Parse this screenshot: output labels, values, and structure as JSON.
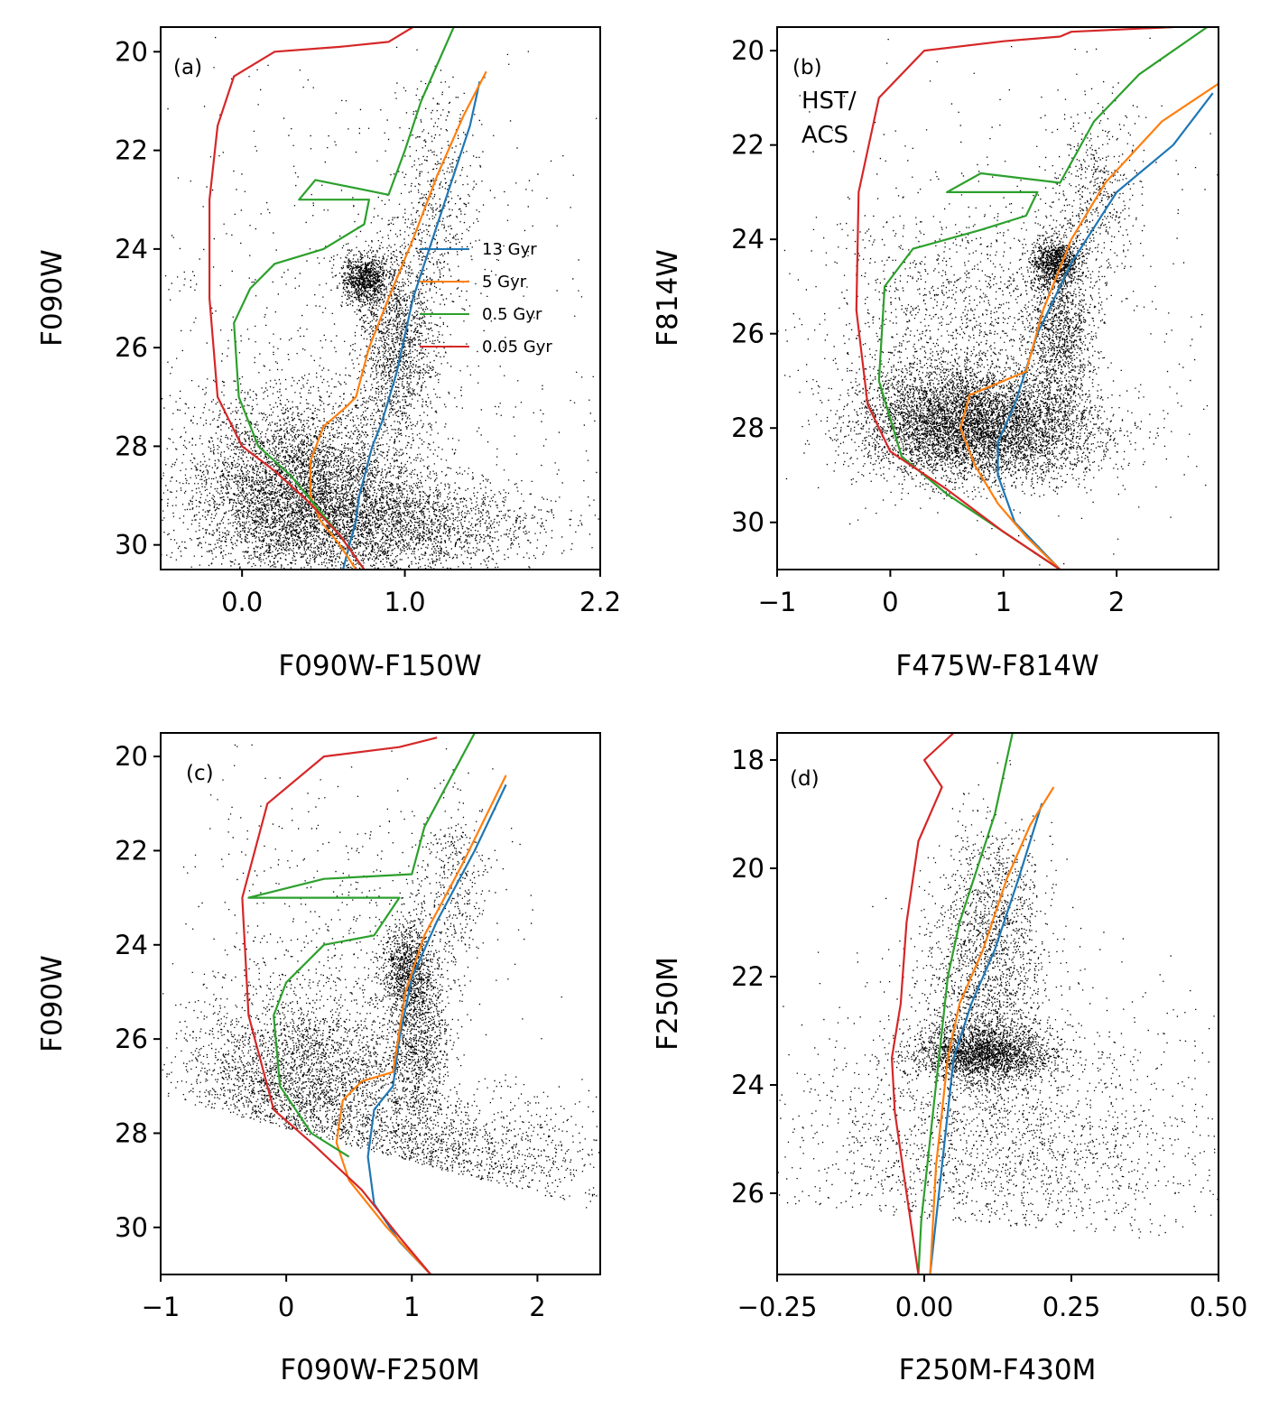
{
  "figure": {
    "description_note": "Four color-magnitude diagram panels with isochrones",
    "colors": {
      "13 Gyr": "#1f77b4",
      "5 Gyr": "#ff7f0e",
      "0.5 Gyr": "#2ca02c",
      "0.05 Gyr": "#d62728",
      "points": "#000000"
    }
  },
  "chart_data": [
    {
      "type": "scatter",
      "panel_label": "(a)",
      "xlabel": "F090W-F150W",
      "ylabel": "F090W",
      "xlim": [
        -0.5,
        2.2
      ],
      "ylim": [
        30.5,
        19.5
      ],
      "xticks": [
        0.0,
        1.0,
        2.2
      ],
      "xtick_labels": [
        "0.0",
        "1.0",
        "2.2"
      ],
      "yticks": [
        20,
        22,
        24,
        26,
        28,
        30
      ],
      "ytick_labels": [
        "20",
        "22",
        "24",
        "26",
        "28",
        "30"
      ],
      "legend": [
        "13 Gyr",
        "5 Gyr",
        "0.5 Gyr",
        "0.05 Gyr"
      ],
      "series": [
        {
          "name": "13 Gyr",
          "x": [
            0.62,
            0.66,
            0.7,
            0.72,
            0.76,
            0.8,
            0.86,
            0.95,
            1.05,
            1.2,
            1.4,
            1.46
          ],
          "y": [
            30.5,
            30.0,
            29.5,
            29.0,
            28.5,
            28.0,
            27.5,
            26.5,
            25.0,
            23.5,
            21.5,
            20.6
          ]
        },
        {
          "name": "5 Gyr",
          "x": [
            0.7,
            0.6,
            0.48,
            0.42,
            0.42,
            0.5,
            0.64,
            0.7,
            0.78,
            0.9,
            1.05,
            1.2,
            1.36,
            1.5
          ],
          "y": [
            30.5,
            30.0,
            29.5,
            29.0,
            28.3,
            27.6,
            27.2,
            27.0,
            26.0,
            25.0,
            23.8,
            22.5,
            21.3,
            20.4
          ]
        },
        {
          "name": "0.5 Gyr",
          "x": [
            0.75,
            0.6,
            0.45,
            0.3,
            0.1,
            -0.02,
            -0.05,
            0.05,
            0.2,
            0.5,
            0.75,
            0.78,
            0.35,
            0.45,
            0.9,
            1.0,
            1.1,
            1.3
          ],
          "y": [
            30.5,
            29.8,
            29.2,
            28.6,
            28.0,
            27.0,
            25.5,
            24.8,
            24.3,
            24.0,
            23.5,
            23.0,
            23.0,
            22.6,
            22.9,
            22.0,
            21.0,
            19.5
          ]
        },
        {
          "name": "0.05 Gyr",
          "x": [
            0.75,
            0.6,
            0.4,
            0.2,
            0.0,
            -0.15,
            -0.2,
            -0.2,
            -0.15,
            -0.05,
            0.2,
            0.6,
            0.9,
            0.95,
            1.05
          ],
          "y": [
            30.5,
            29.8,
            29.1,
            28.5,
            28.0,
            27.0,
            25.0,
            23.0,
            21.5,
            20.5,
            20.0,
            19.9,
            19.8,
            19.7,
            19.5
          ]
        }
      ],
      "scatter_description": "dense black point cloud: main sequence / red giant branch near color 0.0-1.3"
    },
    {
      "type": "scatter",
      "panel_label": "(b)",
      "annotation": "HST/\nACS",
      "xlabel": "F475W-F814W",
      "ylabel": "F814W",
      "xlim": [
        -1.0,
        2.9
      ],
      "ylim": [
        31.0,
        19.5
      ],
      "xticks": [
        -1,
        0,
        1,
        2
      ],
      "xtick_labels": [
        "−1",
        "0",
        "1",
        "2"
      ],
      "yticks": [
        20,
        22,
        24,
        26,
        28,
        30
      ],
      "ytick_labels": [
        "20",
        "22",
        "24",
        "26",
        "28",
        "30"
      ],
      "series": [
        {
          "name": "13 Gyr",
          "x": [
            1.5,
            1.3,
            1.1,
            0.95,
            0.95,
            1.1,
            1.3,
            1.6,
            2.0,
            2.5,
            2.85
          ],
          "y": [
            31.0,
            30.5,
            30.0,
            29.0,
            28.3,
            27.5,
            26.0,
            24.5,
            23.0,
            22.0,
            20.9
          ]
        },
        {
          "name": "5 Gyr",
          "x": [
            1.5,
            1.2,
            0.95,
            0.75,
            0.62,
            0.7,
            1.0,
            1.2,
            1.35,
            1.6,
            1.9,
            2.4,
            2.9
          ],
          "y": [
            31.0,
            30.3,
            29.6,
            28.8,
            28.0,
            27.3,
            27.0,
            26.8,
            25.5,
            24.0,
            22.8,
            21.5,
            20.7
          ]
        },
        {
          "name": "0.5 Gyr",
          "x": [
            1.5,
            1.0,
            0.5,
            0.1,
            -0.1,
            -0.05,
            0.2,
            0.8,
            1.2,
            1.3,
            0.5,
            0.8,
            1.5,
            1.8,
            2.2,
            2.8
          ],
          "y": [
            31.0,
            30.2,
            29.4,
            28.6,
            27.0,
            25.0,
            24.2,
            23.8,
            23.5,
            23.0,
            23.0,
            22.6,
            22.8,
            21.5,
            20.5,
            19.5
          ]
        },
        {
          "name": "0.05 Gyr",
          "x": [
            1.5,
            1.0,
            0.5,
            0.0,
            -0.2,
            -0.3,
            -0.28,
            -0.1,
            0.3,
            1.0,
            1.5,
            1.6,
            2.5
          ],
          "y": [
            31.0,
            30.2,
            29.3,
            28.5,
            27.5,
            25.5,
            23.0,
            21.0,
            20.0,
            19.8,
            19.7,
            19.6,
            19.5
          ]
        }
      ],
      "scatter_description": "dense black cloud: color 0-1.5, magnitude 24-29"
    },
    {
      "type": "scatter",
      "panel_label": "(c)",
      "xlabel": "F090W-F250M",
      "ylabel": "F090W",
      "xlim": [
        -1.0,
        2.5
      ],
      "ylim": [
        31.0,
        19.5
      ],
      "xticks": [
        -1,
        0,
        1,
        2
      ],
      "xtick_labels": [
        "−1",
        "0",
        "1",
        "2"
      ],
      "yticks": [
        20,
        22,
        24,
        26,
        28,
        30
      ],
      "ytick_labels": [
        "20",
        "22",
        "24",
        "26",
        "28",
        "30"
      ],
      "series": [
        {
          "name": "13 Gyr",
          "x": [
            1.15,
            0.9,
            0.7,
            0.65,
            0.7,
            0.85,
            0.9,
            1.0,
            1.2,
            1.5,
            1.75
          ],
          "y": [
            31.0,
            30.3,
            29.5,
            28.5,
            27.5,
            27.0,
            26.0,
            24.7,
            23.5,
            22.0,
            20.6
          ]
        },
        {
          "name": "5 Gyr",
          "x": [
            1.15,
            0.8,
            0.5,
            0.4,
            0.45,
            0.6,
            0.85,
            0.95,
            1.1,
            1.4,
            1.75
          ],
          "y": [
            31.0,
            30.0,
            29.0,
            28.2,
            27.3,
            26.9,
            26.7,
            25.0,
            23.8,
            22.3,
            20.4
          ]
        },
        {
          "name": "0.5 Gyr",
          "x": [
            0.5,
            0.2,
            -0.05,
            -0.1,
            0.0,
            0.3,
            0.7,
            0.9,
            -0.3,
            0.3,
            1.0,
            1.1,
            1.5
          ],
          "y": [
            28.5,
            28.0,
            27.0,
            25.5,
            24.8,
            24.0,
            23.8,
            23.0,
            23.0,
            22.6,
            22.5,
            21.5,
            19.5
          ]
        },
        {
          "name": "0.05 Gyr",
          "x": [
            1.15,
            0.9,
            0.6,
            0.2,
            -0.1,
            -0.3,
            -0.35,
            -0.15,
            0.3,
            0.9,
            1.2
          ],
          "y": [
            31.0,
            30.2,
            29.2,
            28.2,
            27.5,
            25.5,
            23.0,
            21.0,
            20.0,
            19.8,
            19.6
          ]
        }
      ],
      "scatter_description": "black cloud bounded below by a slanted completeness edge"
    },
    {
      "type": "scatter",
      "panel_label": "(d)",
      "xlabel": "F250M-F430M",
      "ylabel": "F250M",
      "xlim": [
        -0.25,
        0.5
      ],
      "ylim": [
        27.5,
        17.5
      ],
      "xticks": [
        -0.25,
        0.0,
        0.25,
        0.5
      ],
      "xtick_labels": [
        "−0.25",
        "0.00",
        "0.25",
        "0.50"
      ],
      "yticks": [
        18,
        20,
        22,
        24,
        26
      ],
      "ytick_labels": [
        "18",
        "20",
        "22",
        "24",
        "26"
      ],
      "series": [
        {
          "name": "13 Gyr",
          "x": [
            0.01,
            0.02,
            0.03,
            0.04,
            0.05,
            0.08,
            0.12,
            0.16,
            0.2
          ],
          "y": [
            27.5,
            26.5,
            25.5,
            24.5,
            23.5,
            22.5,
            21.5,
            20.2,
            18.8
          ]
        },
        {
          "name": "5 Gyr",
          "x": [
            0.01,
            0.015,
            0.02,
            0.03,
            0.04,
            0.06,
            0.1,
            0.14,
            0.18,
            0.22
          ],
          "y": [
            27.5,
            26.5,
            25.5,
            24.5,
            23.5,
            22.5,
            21.5,
            20.2,
            19.2,
            18.5
          ]
        },
        {
          "name": "0.5 Gyr",
          "x": [
            -0.01,
            -0.005,
            0.01,
            0.02,
            0.03,
            0.04,
            0.06,
            0.09,
            0.12,
            0.15
          ],
          "y": [
            27.5,
            26.5,
            25.0,
            24.0,
            23.0,
            22.0,
            21.0,
            20.0,
            19.0,
            17.5
          ]
        },
        {
          "name": "0.05 Gyr",
          "x": [
            -0.01,
            -0.03,
            -0.05,
            -0.055,
            -0.04,
            -0.03,
            -0.01,
            0.03,
            0.0,
            0.05
          ],
          "y": [
            27.5,
            26.0,
            24.5,
            23.5,
            22.5,
            21.0,
            19.5,
            18.5,
            18.0,
            17.5
          ]
        }
      ],
      "scatter_description": "vertical RGB plume near color 0.05-0.2 plus broad faint cloud"
    }
  ]
}
